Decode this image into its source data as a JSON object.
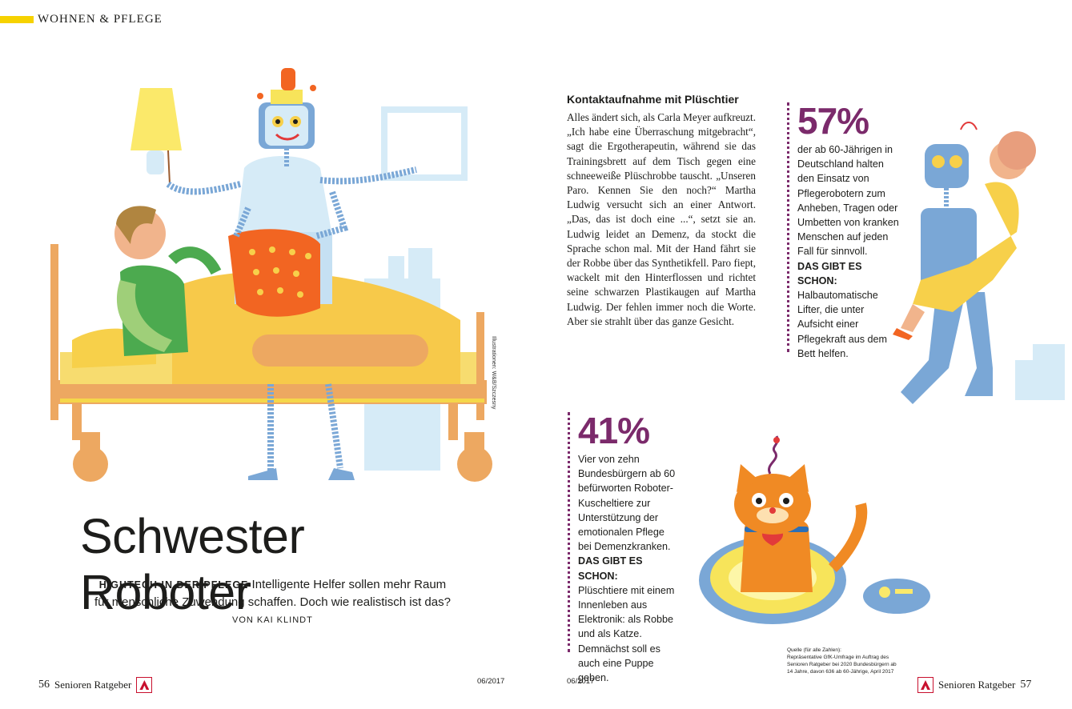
{
  "header": {
    "section": "WOHNEN & PFLEGE"
  },
  "illustration_credit": "Illustrationen: W&B/Szczesny",
  "title": "Schwester Roboter",
  "lead": {
    "kicker": "HIGHTECH IN DER PFLEGE",
    "text": " Intelligente Helfer sollen mehr Raum für menschliche Zuwendung schaffen. Doch wie realistisch ist das?"
  },
  "byline": "VON KAI KLINDT",
  "article": {
    "heading": "Kontaktaufnahme mit Plüschtier",
    "body": "Alles ändert sich, als Carla Meyer aufkreuzt. „Ich habe eine Überraschung mitgebracht“, sagt die Ergotherapeutin, während sie das Trainingsbrett auf dem Tisch gegen eine schneeweiße Plüschrobbe tauscht. „Unseren Paro. Kennen Sie den noch?“ Martha Ludwig versucht sich an einer Antwort. „Das, das ist doch eine ...“, setzt sie an. Ludwig leidet an Demenz, da stockt die Sprache schon mal. Mit der Hand fährt sie der Robbe über das Synthetikfell. Paro fiept, wackelt mit den Hinterflossen und richtet seine schwarzen Plastikaugen auf Martha Ludwig. Der fehlen immer noch die Worte. Aber sie strahlt über das ganze Gesicht."
  },
  "stat1": {
    "value": "57%",
    "text": "der ab 60-Jährigen in Deutschland halten den Einsatz von Pflegerobotern zum Anheben, Tragen oder Umbetten von kranken Menschen auf jeden Fall für sinnvoll.",
    "exists_label": "DAS GIBT ES SCHON:",
    "exists_text": "Halbautomatische Lifter, die unter Aufsicht einer Pflegekraft aus dem Bett helfen."
  },
  "stat2": {
    "value": "41%",
    "text": "Vier von zehn Bundesbürgern ab 60 befürworten Roboter-Kuscheltiere zur Unterstützung der emotionalen Pflege bei Demenzkranken.",
    "exists_label": "DAS GIBT ES SCHON:",
    "exists_text": "Plüschtiere mit einem Innenleben aus Elektronik: als Robbe und als Katze. Demnächst soll es auch eine Puppe geben."
  },
  "source": {
    "label": "Quelle (für alle Zahlen):",
    "text": "Repräsentative GfK-Umfrage im Auftrag des Senioren Ratgeber bei 2020 Bundesbürgern ab 14 Jahre, davon 636 ab 60-Jährige, April 2017"
  },
  "footer_left": {
    "page": "56",
    "magazine": "Senioren Ratgeber",
    "issue": "06/2017"
  },
  "footer_right": {
    "page": "57",
    "magazine": "Senioren Ratgeber",
    "issue": "06/2017"
  },
  "colors": {
    "accent_yellow": "#f6d200",
    "stat_purple": "#7b2a6b",
    "logo_red": "#c8102e"
  }
}
